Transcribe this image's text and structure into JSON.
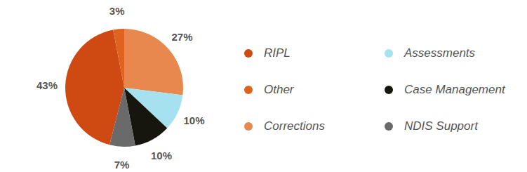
{
  "chart_data": {
    "type": "pie",
    "categories": [
      "RIPL",
      "Other",
      "Corrections",
      "Assessments",
      "Case Management",
      "NDIS Support"
    ],
    "values": [
      43,
      3,
      27,
      10,
      10,
      7
    ],
    "value_labels": [
      "43%",
      "3%",
      "27%",
      "10%",
      "10%",
      "7%"
    ],
    "colors": [
      "#cf4a13",
      "#e0621f",
      "#e8884f",
      "#a6e1ef",
      "#16160f",
      "#6a6a6a"
    ],
    "data_labels": true,
    "legend": "right"
  }
}
